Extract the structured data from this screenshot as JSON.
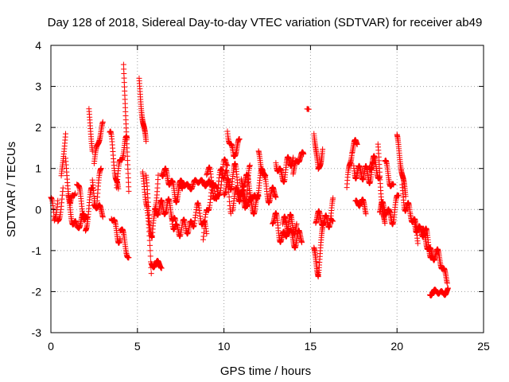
{
  "chart_data": {
    "type": "scatter",
    "title": "Day 128 of 2018, Sidereal Day-to-day VTEC variation (SDTVAR) for receiver ab49",
    "xlabel": "GPS time / hours",
    "ylabel": "SDTVAR / TECUs",
    "xlim": [
      0,
      25
    ],
    "ylim": [
      -3,
      4
    ],
    "xticks": [
      0,
      5,
      10,
      15,
      20,
      25
    ],
    "yticks": [
      -3,
      -2,
      -1,
      0,
      1,
      2,
      3,
      4
    ],
    "xtick_labels": [
      "0",
      "5",
      "10",
      "15",
      "20",
      "25"
    ],
    "ytick_labels": [
      "-3",
      "-2",
      "-1",
      "0",
      "1",
      "2",
      "3",
      "4"
    ],
    "grid": true,
    "marker": "+",
    "color": "#ff0000",
    "series": [
      {
        "name": "SDTVAR",
        "tracks": [
          {
            "x0": 0.0,
            "x1": 0.4,
            "step": 0.02,
            "base": [
              0.3,
              -0.4,
              0.2
            ],
            "amp": 0.25
          },
          {
            "x0": 0.4,
            "x1": 0.7,
            "step": 0.02,
            "base": [
              -0.3,
              0.5
            ],
            "amp": 0.2
          },
          {
            "x0": 0.6,
            "x1": 0.85,
            "step": 0.015,
            "base": [
              0.8,
              1.8
            ],
            "amp": 0.15
          },
          {
            "x0": 0.85,
            "x1": 1.4,
            "step": 0.015,
            "base": [
              1.0,
              0.2,
              0.6
            ],
            "amp": 0.3
          },
          {
            "x0": 1.0,
            "x1": 2.0,
            "step": 0.015,
            "base": [
              0.3,
              -0.6,
              0.0
            ],
            "amp": 0.25
          },
          {
            "x0": 1.5,
            "x1": 2.1,
            "step": 0.015,
            "base": [
              0.6,
              -0.3
            ],
            "amp": 0.25
          },
          {
            "x0": 2.0,
            "x1": 2.4,
            "step": 0.015,
            "base": [
              -0.5,
              0.4
            ],
            "amp": 0.3
          },
          {
            "x0": 2.2,
            "x1": 2.4,
            "step": 0.012,
            "base": [
              2.3,
              1.5
            ],
            "amp": 0.2
          },
          {
            "x0": 2.4,
            "x1": 2.9,
            "step": 0.015,
            "base": [
              0.7,
              0.2,
              0.9
            ],
            "amp": 0.3
          },
          {
            "x0": 2.5,
            "x1": 3.0,
            "step": 0.015,
            "base": [
              1.2,
              2.0
            ],
            "amp": 0.2
          },
          {
            "x0": 2.5,
            "x1": 3.0,
            "step": 0.015,
            "base": [
              0.1,
              -0.1
            ],
            "amp": 0.15
          },
          {
            "x0": 3.4,
            "x1": 3.9,
            "step": 0.015,
            "base": [
              1.7,
              0.5
            ],
            "amp": 0.35
          },
          {
            "x0": 3.5,
            "x1": 4.0,
            "step": 0.015,
            "base": [
              -0.2,
              -0.6
            ],
            "amp": 0.3
          },
          {
            "x0": 3.8,
            "x1": 4.4,
            "step": 0.015,
            "base": [
              0.8,
              1.6
            ],
            "amp": 0.35
          },
          {
            "x0": 4.0,
            "x1": 4.5,
            "step": 0.015,
            "base": [
              -0.5,
              -1.1
            ],
            "amp": 0.2
          },
          {
            "x0": 4.2,
            "x1": 4.5,
            "step": 0.01,
            "base": [
              3.6,
              2.0,
              0.5
            ],
            "amp": 0.15
          },
          {
            "x0": 5.1,
            "x1": 5.5,
            "step": 0.01,
            "base": [
              3.2,
              1.5
            ],
            "amp": 0.25
          },
          {
            "x0": 5.3,
            "x1": 5.8,
            "step": 0.015,
            "base": [
              0.8,
              0.0,
              -1.5
            ],
            "amp": 0.3
          },
          {
            "x0": 5.5,
            "x1": 6.2,
            "step": 0.015,
            "base": [
              0.5,
              -0.6,
              0.8
            ],
            "amp": 0.35
          },
          {
            "x0": 5.8,
            "x1": 6.4,
            "step": 0.015,
            "base": [
              -1.3,
              -1.4
            ],
            "amp": 0.12
          },
          {
            "x0": 6.0,
            "x1": 7.2,
            "step": 0.015,
            "base": [
              -0.3,
              0.3,
              -0.5
            ],
            "amp": 0.4
          },
          {
            "x0": 6.4,
            "x1": 7.6,
            "step": 0.015,
            "base": [
              1.2,
              0.4,
              0.6
            ],
            "amp": 0.35
          },
          {
            "x0": 7.0,
            "x1": 9.0,
            "step": 0.02,
            "base": [
              -0.2,
              -0.6,
              -0.1,
              -0.4
            ],
            "amp": 0.35
          },
          {
            "x0": 7.4,
            "x1": 9.6,
            "step": 0.02,
            "base": [
              0.6,
              0.6,
              0.7,
              0.5
            ],
            "amp": 0.12
          },
          {
            "x0": 8.8,
            "x1": 10.4,
            "step": 0.02,
            "base": [
              -0.4,
              0.3,
              1.0,
              0.2
            ],
            "amp": 0.4
          },
          {
            "x0": 9.0,
            "x1": 10.2,
            "step": 0.02,
            "base": [
              0.9,
              0.3,
              1.2
            ],
            "amp": 0.3
          },
          {
            "x0": 10.0,
            "x1": 11.5,
            "step": 0.015,
            "base": [
              0.4,
              1.0,
              0.2,
              0.8
            ],
            "amp": 0.45
          },
          {
            "x0": 10.2,
            "x1": 10.9,
            "step": 0.015,
            "base": [
              2.1,
              1.2,
              1.6
            ],
            "amp": 0.25
          },
          {
            "x0": 10.5,
            "x1": 12.0,
            "step": 0.015,
            "base": [
              0.0,
              0.6,
              -0.1,
              0.4
            ],
            "amp": 0.35
          },
          {
            "x0": 11.0,
            "x1": 12.4,
            "step": 0.015,
            "base": [
              0.8,
              0.3,
              0.9
            ],
            "amp": 0.3
          },
          {
            "x0": 12.0,
            "x1": 13.0,
            "step": 0.015,
            "base": [
              1.2,
              0.5,
              0.3
            ],
            "amp": 0.3
          },
          {
            "x0": 12.8,
            "x1": 14.2,
            "step": 0.015,
            "base": [
              -0.3,
              -0.6,
              -0.3
            ],
            "amp": 0.35
          },
          {
            "x0": 13.0,
            "x1": 14.0,
            "step": 0.015,
            "base": [
              1.2,
              0.8,
              1.3
            ],
            "amp": 0.3
          },
          {
            "x0": 13.4,
            "x1": 14.5,
            "step": 0.015,
            "base": [
              -0.4,
              -0.8
            ],
            "amp": 0.3
          },
          {
            "x0": 14.0,
            "x1": 14.6,
            "step": 0.015,
            "base": [
              1.0,
              1.3
            ],
            "amp": 0.2
          },
          {
            "x0": 14.8,
            "x1": 14.9,
            "step": 0.02,
            "base": [
              2.45
            ],
            "amp": 0.02
          },
          {
            "x0": 15.2,
            "x1": 15.7,
            "step": 0.012,
            "base": [
              1.9,
              1.0,
              1.5
            ],
            "amp": 0.2
          },
          {
            "x0": 15.2,
            "x1": 15.7,
            "step": 0.012,
            "base": [
              -1.0,
              -1.4,
              -0.6
            ],
            "amp": 0.25
          },
          {
            "x0": 15.3,
            "x1": 16.3,
            "step": 0.015,
            "base": [
              0.0,
              -0.5,
              0.2
            ],
            "amp": 0.35
          },
          {
            "x0": 16.2,
            "x1": 16.3,
            "step": 0.02,
            "base": [
              -0.2
            ],
            "amp": 0.2
          },
          {
            "x0": 17.1,
            "x1": 17.7,
            "step": 0.015,
            "base": [
              0.4,
              1.4,
              1.8
            ],
            "amp": 0.3
          },
          {
            "x0": 17.5,
            "x1": 18.6,
            "step": 0.015,
            "base": [
              1.2,
              0.7,
              1.1
            ],
            "amp": 0.35
          },
          {
            "x0": 17.6,
            "x1": 18.2,
            "step": 0.015,
            "base": [
              0.2,
              0.0
            ],
            "amp": 0.2
          },
          {
            "x0": 18.4,
            "x1": 19.0,
            "step": 0.015,
            "base": [
              1.2,
              0.8
            ],
            "amp": 0.3
          },
          {
            "x0": 18.9,
            "x1": 19.3,
            "step": 0.012,
            "base": [
              1.5,
              0.5,
              -0.5
            ],
            "amp": 0.3
          },
          {
            "x0": 19.0,
            "x1": 20.1,
            "step": 0.015,
            "base": [
              0.2,
              -0.3,
              0.4
            ],
            "amp": 0.35
          },
          {
            "x0": 19.3,
            "x1": 19.8,
            "step": 0.015,
            "base": [
              1.0,
              0.6
            ],
            "amp": 0.25
          },
          {
            "x0": 20.0,
            "x1": 20.5,
            "step": 0.012,
            "base": [
              1.6,
              1.0,
              0.4
            ],
            "amp": 0.25
          },
          {
            "x0": 20.3,
            "x1": 21.2,
            "step": 0.015,
            "base": [
              0.6,
              -0.2,
              -0.6
            ],
            "amp": 0.35
          },
          {
            "x0": 21.0,
            "x1": 22.0,
            "step": 0.015,
            "base": [
              -0.2,
              -0.6,
              -1.0
            ],
            "amp": 0.3
          },
          {
            "x0": 21.5,
            "x1": 22.9,
            "step": 0.015,
            "base": [
              -0.7,
              -1.1,
              -1.6
            ],
            "amp": 0.25
          },
          {
            "x0": 21.9,
            "x1": 22.95,
            "step": 0.015,
            "base": [
              -2.0,
              -2.05,
              -1.95
            ],
            "amp": 0.1
          }
        ]
      }
    ]
  }
}
